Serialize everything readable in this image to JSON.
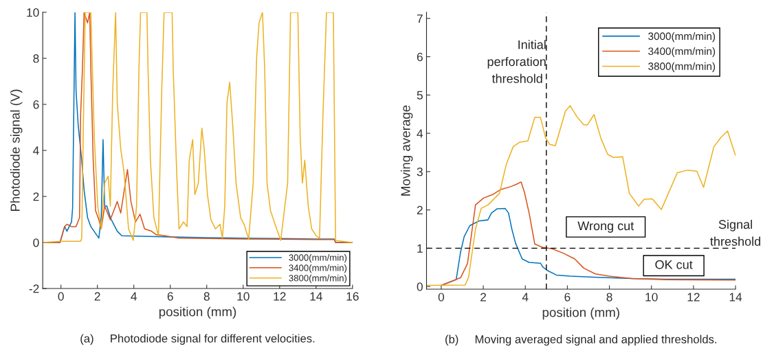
{
  "chart_data": [
    {
      "type": "line",
      "xlabel": "position (mm)",
      "ylabel": "Photodiode signal (V)",
      "xlim": [
        -1,
        16
      ],
      "ylim": [
        -2,
        10
      ],
      "xticks": [
        0,
        2,
        4,
        6,
        8,
        10,
        12,
        14,
        16
      ],
      "yticks": [
        -2,
        0,
        2,
        4,
        6,
        8,
        10
      ],
      "legend": "bottom right",
      "grid": false,
      "annotations": [
        "(a)     Photodiode signal for different velocities."
      ],
      "series": [
        {
          "name": "3000(mm/min)",
          "color": "#0072bd",
          "x": [
            -1,
            -0.05,
            0.2,
            0.33,
            0.58,
            0.64,
            0.77,
            0.83,
            0.95,
            1.14,
            1.27,
            1.46,
            1.64,
            2.08,
            2.21,
            2.31,
            2.4,
            2.52,
            2.71,
            3.09,
            3.34,
            4.5,
            6,
            8,
            10,
            12,
            14,
            15.0,
            15.07,
            16
          ],
          "values": [
            0,
            0,
            0.69,
            0.49,
            0.89,
            1.5,
            10,
            6.56,
            5.06,
            3.57,
            2.28,
            1.08,
            0.69,
            0.19,
            1.08,
            4.47,
            1.58,
            1.58,
            1.08,
            0.49,
            0.29,
            0.27,
            0.24,
            0.21,
            0.19,
            0.17,
            0.15,
            0.15,
            0,
            0
          ]
        },
        {
          "name": "3400(mm/min)",
          "color": "#d95319",
          "x": [
            -1,
            -0.05,
            0.2,
            0.33,
            0.58,
            0.83,
            1.02,
            1.08,
            1.18,
            1.27,
            1.46,
            1.58,
            1.64,
            1.77,
            1.9,
            2.08,
            2.21,
            2.4,
            2.71,
            3.09,
            3.28,
            3.65,
            3.84,
            4.09,
            4.34,
            4.59,
            4.97,
            5.22,
            5.72,
            6.48,
            8,
            10,
            12,
            14,
            15.0,
            15.07,
            16
          ],
          "values": [
            0,
            0,
            0.69,
            0.79,
            0.69,
            0.69,
            1.08,
            5.56,
            7.55,
            10,
            9.54,
            10,
            7.55,
            3.57,
            1.38,
            0.99,
            0.59,
            1.58,
            0.99,
            1.78,
            1.28,
            3.17,
            1.78,
            0.89,
            1.23,
            0.59,
            0.49,
            0.34,
            0.29,
            0.19,
            0.17,
            0.15,
            0.14,
            0.13,
            0.13,
            0,
            0
          ]
        },
        {
          "name": "3800(mm/min)",
          "color": "#edb120",
          "x": [
            -1,
            0,
            1.08,
            1.14,
            1.2,
            1.33,
            1.64,
            1.83,
            2.02,
            2.21,
            2.4,
            2.59,
            2.71,
            2.84,
            3.0,
            3.09,
            3.28,
            3.46,
            3.71,
            3.97,
            4.15,
            4.28,
            4.37,
            4.72,
            4.78,
            4.91,
            5.1,
            5.35,
            5.53,
            5.66,
            6.1,
            6.16,
            6.35,
            6.48,
            6.73,
            6.92,
            7.04,
            7.23,
            7.35,
            7.54,
            7.73,
            7.86,
            8.04,
            8.23,
            8.48,
            8.73,
            8.86,
            8.99,
            9.11,
            9.26,
            9.43,
            9.61,
            9.86,
            10.05,
            10.3,
            10.55,
            10.74,
            10.87,
            11.06,
            11.18,
            11.31,
            11.5,
            11.75,
            12.06,
            12.44,
            12.6,
            13.0,
            13.13,
            13.25,
            13.38,
            13.57,
            13.76,
            14.01,
            14.19,
            14.38,
            14.57,
            14.95,
            15.07,
            16
          ],
          "values": [
            0,
            0.05,
            0.05,
            0.19,
            3.57,
            10,
            10,
            4.57,
            1.58,
            0.59,
            2.58,
            2.88,
            1.58,
            6.56,
            10,
            6.06,
            4.07,
            3.07,
            0.59,
            0.09,
            1.58,
            7.55,
            10,
            10,
            7.55,
            3.57,
            1.08,
            0.29,
            6.56,
            10,
            10,
            7.55,
            3.07,
            0.59,
            0.89,
            0.69,
            3.57,
            4.47,
            2.08,
            2.58,
            4.97,
            4.07,
            2.08,
            0.99,
            0.59,
            0.79,
            0.19,
            1.58,
            6.06,
            6.96,
            5.06,
            2.58,
            1.08,
            0.79,
            0.14,
            2.58,
            8.05,
            9.54,
            10,
            7.55,
            2.58,
            1.38,
            0.79,
            0.09,
            2.58,
            10,
            10,
            4.57,
            2.58,
            3.57,
            1.58,
            0.59,
            0.29,
            0.19,
            5.56,
            10,
            10,
            0.09,
            0
          ]
        }
      ]
    },
    {
      "type": "line",
      "xlabel": "position (mm)",
      "ylabel": "Moving average",
      "xlim": [
        -0.7,
        14
      ],
      "ylim": [
        -0.07,
        7.16
      ],
      "xticks": [
        0,
        2,
        4,
        6,
        8,
        10,
        12,
        14
      ],
      "yticks": [
        0,
        1,
        2,
        3,
        4,
        5,
        6,
        7
      ],
      "legend": "top right",
      "grid": false,
      "annotations": [
        "(b)     Moving averaged signal and applied thresholds.",
        "Wrong cut",
        "OK cut"
      ],
      "ref_lines": [
        {
          "axis": "x",
          "value": 5,
          "label": "Initial\nperforation\nthreshold",
          "line_style": "dashed",
          "color": "#000000"
        },
        {
          "axis": "y",
          "value": 1,
          "label": "Signal\nthreshold",
          "line_style": "dashed",
          "color": "#000000"
        }
      ],
      "series": [
        {
          "name": "3000(mm/min)",
          "color": "#0072bd",
          "x": [
            0,
            0.71,
            0.92,
            1.09,
            1.36,
            1.79,
            2.22,
            2.39,
            2.66,
            3.04,
            3.2,
            3.36,
            3.53,
            3.85,
            4.18,
            4.72,
            4.83,
            5.05,
            5.48,
            6.13,
            7.43,
            9.06,
            10.69,
            14
          ],
          "values": [
            0.03,
            0.18,
            0.9,
            1.3,
            1.59,
            1.71,
            1.74,
            1.92,
            2.03,
            2.04,
            1.92,
            1.5,
            1.14,
            0.72,
            0.63,
            0.61,
            0.51,
            0.42,
            0.3,
            0.27,
            0.24,
            0.21,
            0.19,
            0.19
          ]
        },
        {
          "name": "3400(mm/min)",
          "color": "#d95319",
          "x": [
            0,
            0.92,
            1.25,
            1.63,
            2.01,
            2.44,
            2.82,
            3.31,
            3.58,
            3.8,
            3.96,
            4.18,
            4.45,
            4.83,
            5.26,
            5.81,
            6.35,
            6.78,
            7.33,
            7.98,
            9.06,
            10.69,
            14
          ],
          "values": [
            0.03,
            0.23,
            0.6,
            2.13,
            2.31,
            2.4,
            2.53,
            2.61,
            2.67,
            2.73,
            2.46,
            1.92,
            1.11,
            1.02,
            0.99,
            0.87,
            0.72,
            0.48,
            0.33,
            0.27,
            0.21,
            0.18,
            0.17
          ]
        },
        {
          "name": "3800(mm/min)",
          "color": "#edb120",
          "x": [
            -0.7,
            1.14,
            1.3,
            1.63,
            1.9,
            2.22,
            2.77,
            3.09,
            3.42,
            3.74,
            4.12,
            4.45,
            4.72,
            4.96,
            5.16,
            5.43,
            5.91,
            6.13,
            6.46,
            6.78,
            6.95,
            7.27,
            7.6,
            7.92,
            8.19,
            8.63,
            8.95,
            9.39,
            9.66,
            10.04,
            10.47,
            11.23,
            11.72,
            12.16,
            12.48,
            12.97,
            13.3,
            13.62,
            14
          ],
          "values": [
            0.03,
            0.04,
            0.24,
            1.5,
            2.04,
            2.13,
            2.43,
            3.18,
            3.65,
            3.77,
            3.8,
            4.42,
            4.42,
            3.89,
            3.71,
            3.68,
            4.58,
            4.72,
            4.43,
            4.22,
            4.22,
            4.49,
            3.86,
            3.45,
            3.37,
            3.39,
            2.43,
            2.1,
            2.28,
            2.29,
            2.01,
            2.97,
            3.04,
            3.01,
            2.59,
            3.65,
            3.89,
            4.06,
            3.42
          ]
        }
      ]
    }
  ]
}
